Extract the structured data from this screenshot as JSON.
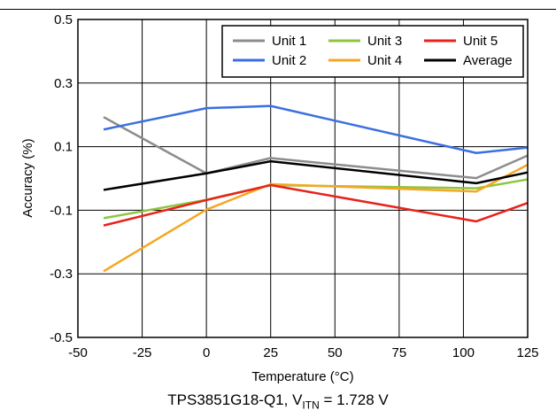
{
  "chart_data": {
    "type": "line",
    "xlabel": "Temperature (°C)",
    "ylabel": "Accuracy (%)",
    "xlim": [
      -50,
      125
    ],
    "ylim": [
      -0.5,
      0.5
    ],
    "xticks": [
      -50,
      -25,
      0,
      25,
      50,
      75,
      100,
      125
    ],
    "yticks": [
      -0.5,
      -0.3,
      -0.1,
      0.1,
      0.3,
      0.5
    ],
    "ytick_labels": [
      "-0.5",
      "-0.3",
      "-0.1",
      "0.1",
      "0.3",
      "0.5"
    ],
    "grid": true,
    "legend_position": "top-right",
    "x": [
      -40,
      0,
      25,
      105,
      125
    ],
    "series": [
      {
        "name": "Unit 1",
        "color": "#8c8c8c",
        "values": [
          0.193,
          0.016,
          0.064,
          0.001,
          0.072
        ]
      },
      {
        "name": "Unit 2",
        "color": "#3b6fe0",
        "values": [
          0.154,
          0.221,
          0.228,
          0.08,
          0.097
        ]
      },
      {
        "name": "Unit 3",
        "color": "#8cc63f",
        "values": [
          -0.125,
          -0.067,
          -0.021,
          -0.031,
          -0.003
        ]
      },
      {
        "name": "Unit 4",
        "color": "#f5a623",
        "values": [
          -0.292,
          -0.098,
          -0.018,
          -0.041,
          0.043
        ]
      },
      {
        "name": "Unit 5",
        "color": "#e8221b",
        "values": [
          -0.148,
          -0.068,
          -0.021,
          -0.135,
          -0.077
        ]
      },
      {
        "name": "Average",
        "color": "#000000",
        "values": [
          -0.036,
          0.016,
          0.054,
          -0.015,
          0.019
        ]
      }
    ],
    "caption": {
      "main": "TPS3851G18-Q1, V",
      "sub": "ITN",
      "tail": " = 1.728 V"
    }
  }
}
